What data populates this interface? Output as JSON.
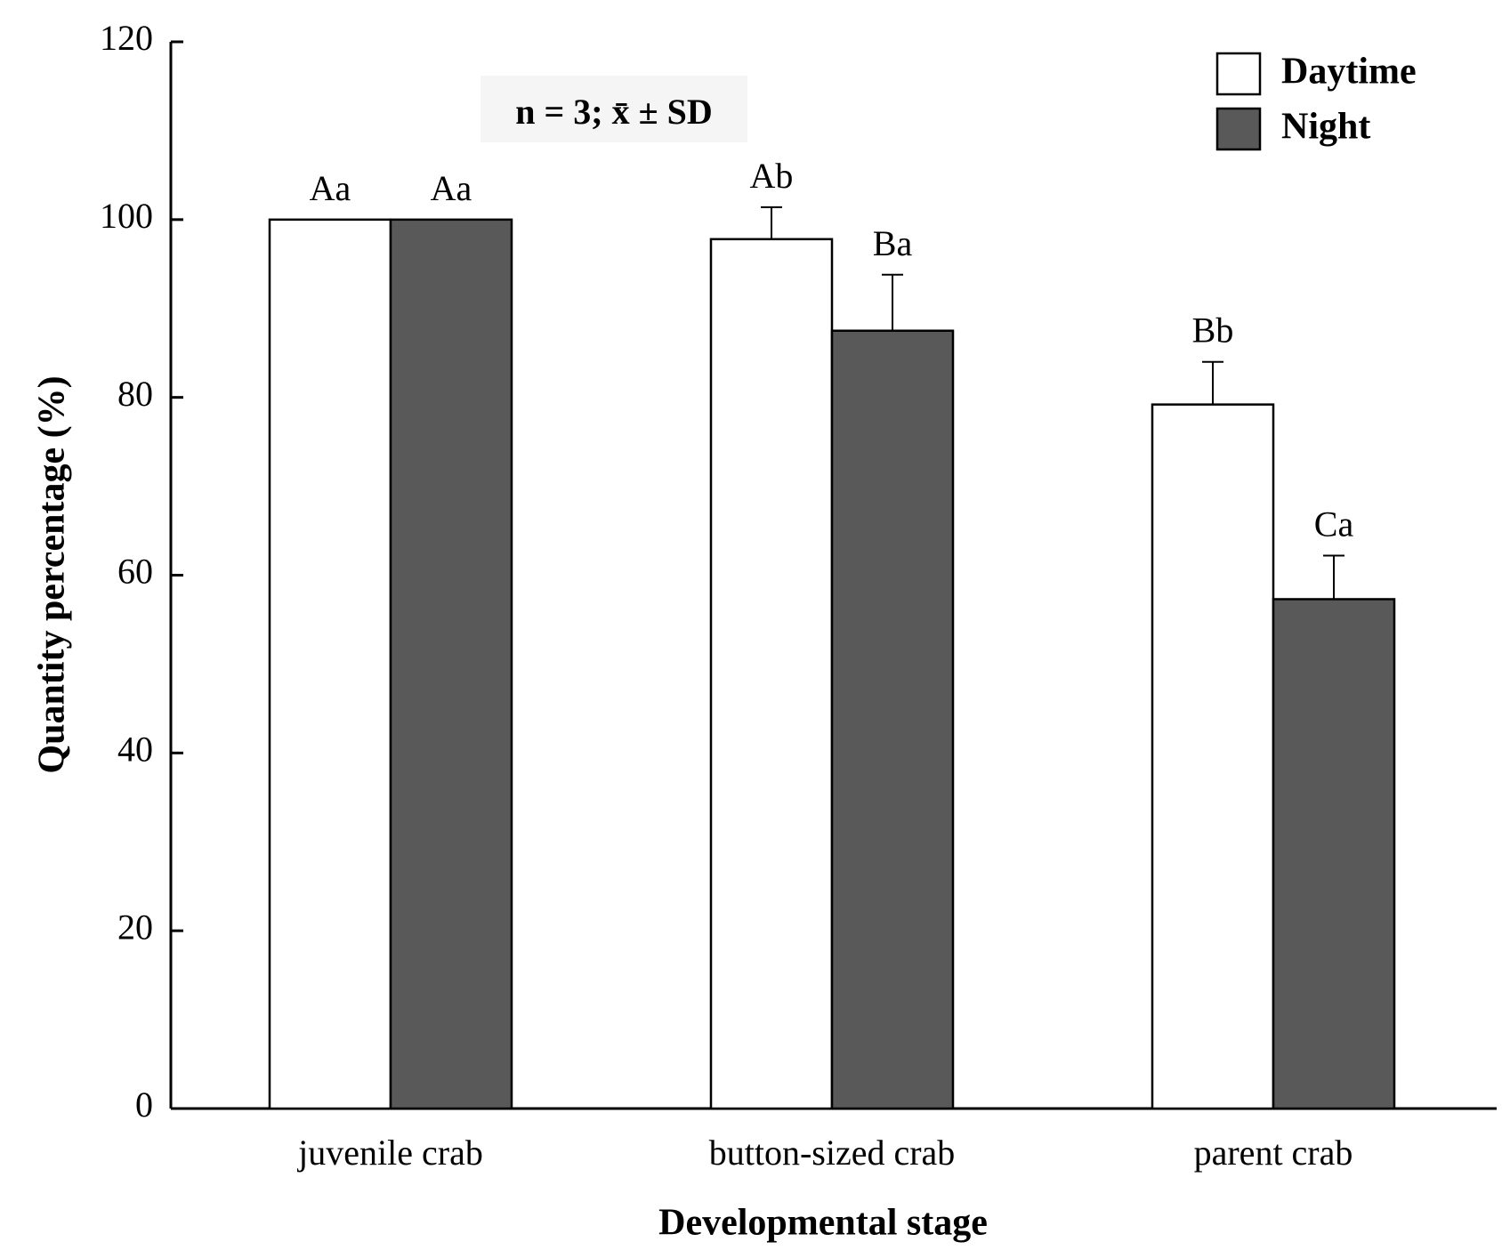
{
  "chart_data": {
    "type": "bar",
    "title": "",
    "xlabel": "Developmental stage",
    "ylabel": "Quantity percentage (%)",
    "ylim": [
      0,
      120
    ],
    "yticks": [
      0,
      20,
      40,
      60,
      80,
      100,
      120
    ],
    "categories": [
      "juvenile crab",
      "button-sized crab",
      "parent crab"
    ],
    "series": [
      {
        "name": "Daytime",
        "color": "#ffffff",
        "values": [
          100,
          97.8,
          79.2
        ],
        "errors": [
          0,
          3.6,
          4.8
        ],
        "labels": [
          "Aa",
          "Ab",
          "Bb"
        ]
      },
      {
        "name": "Night",
        "color": "#595959",
        "values": [
          100,
          87.5,
          57.3
        ],
        "errors": [
          0,
          6.3,
          4.9
        ],
        "labels": [
          "Aa",
          "Ba",
          "Ca"
        ]
      }
    ],
    "annotation": "n = 3; x̄ ± SD",
    "legend_position": "top-right",
    "grid": false
  }
}
